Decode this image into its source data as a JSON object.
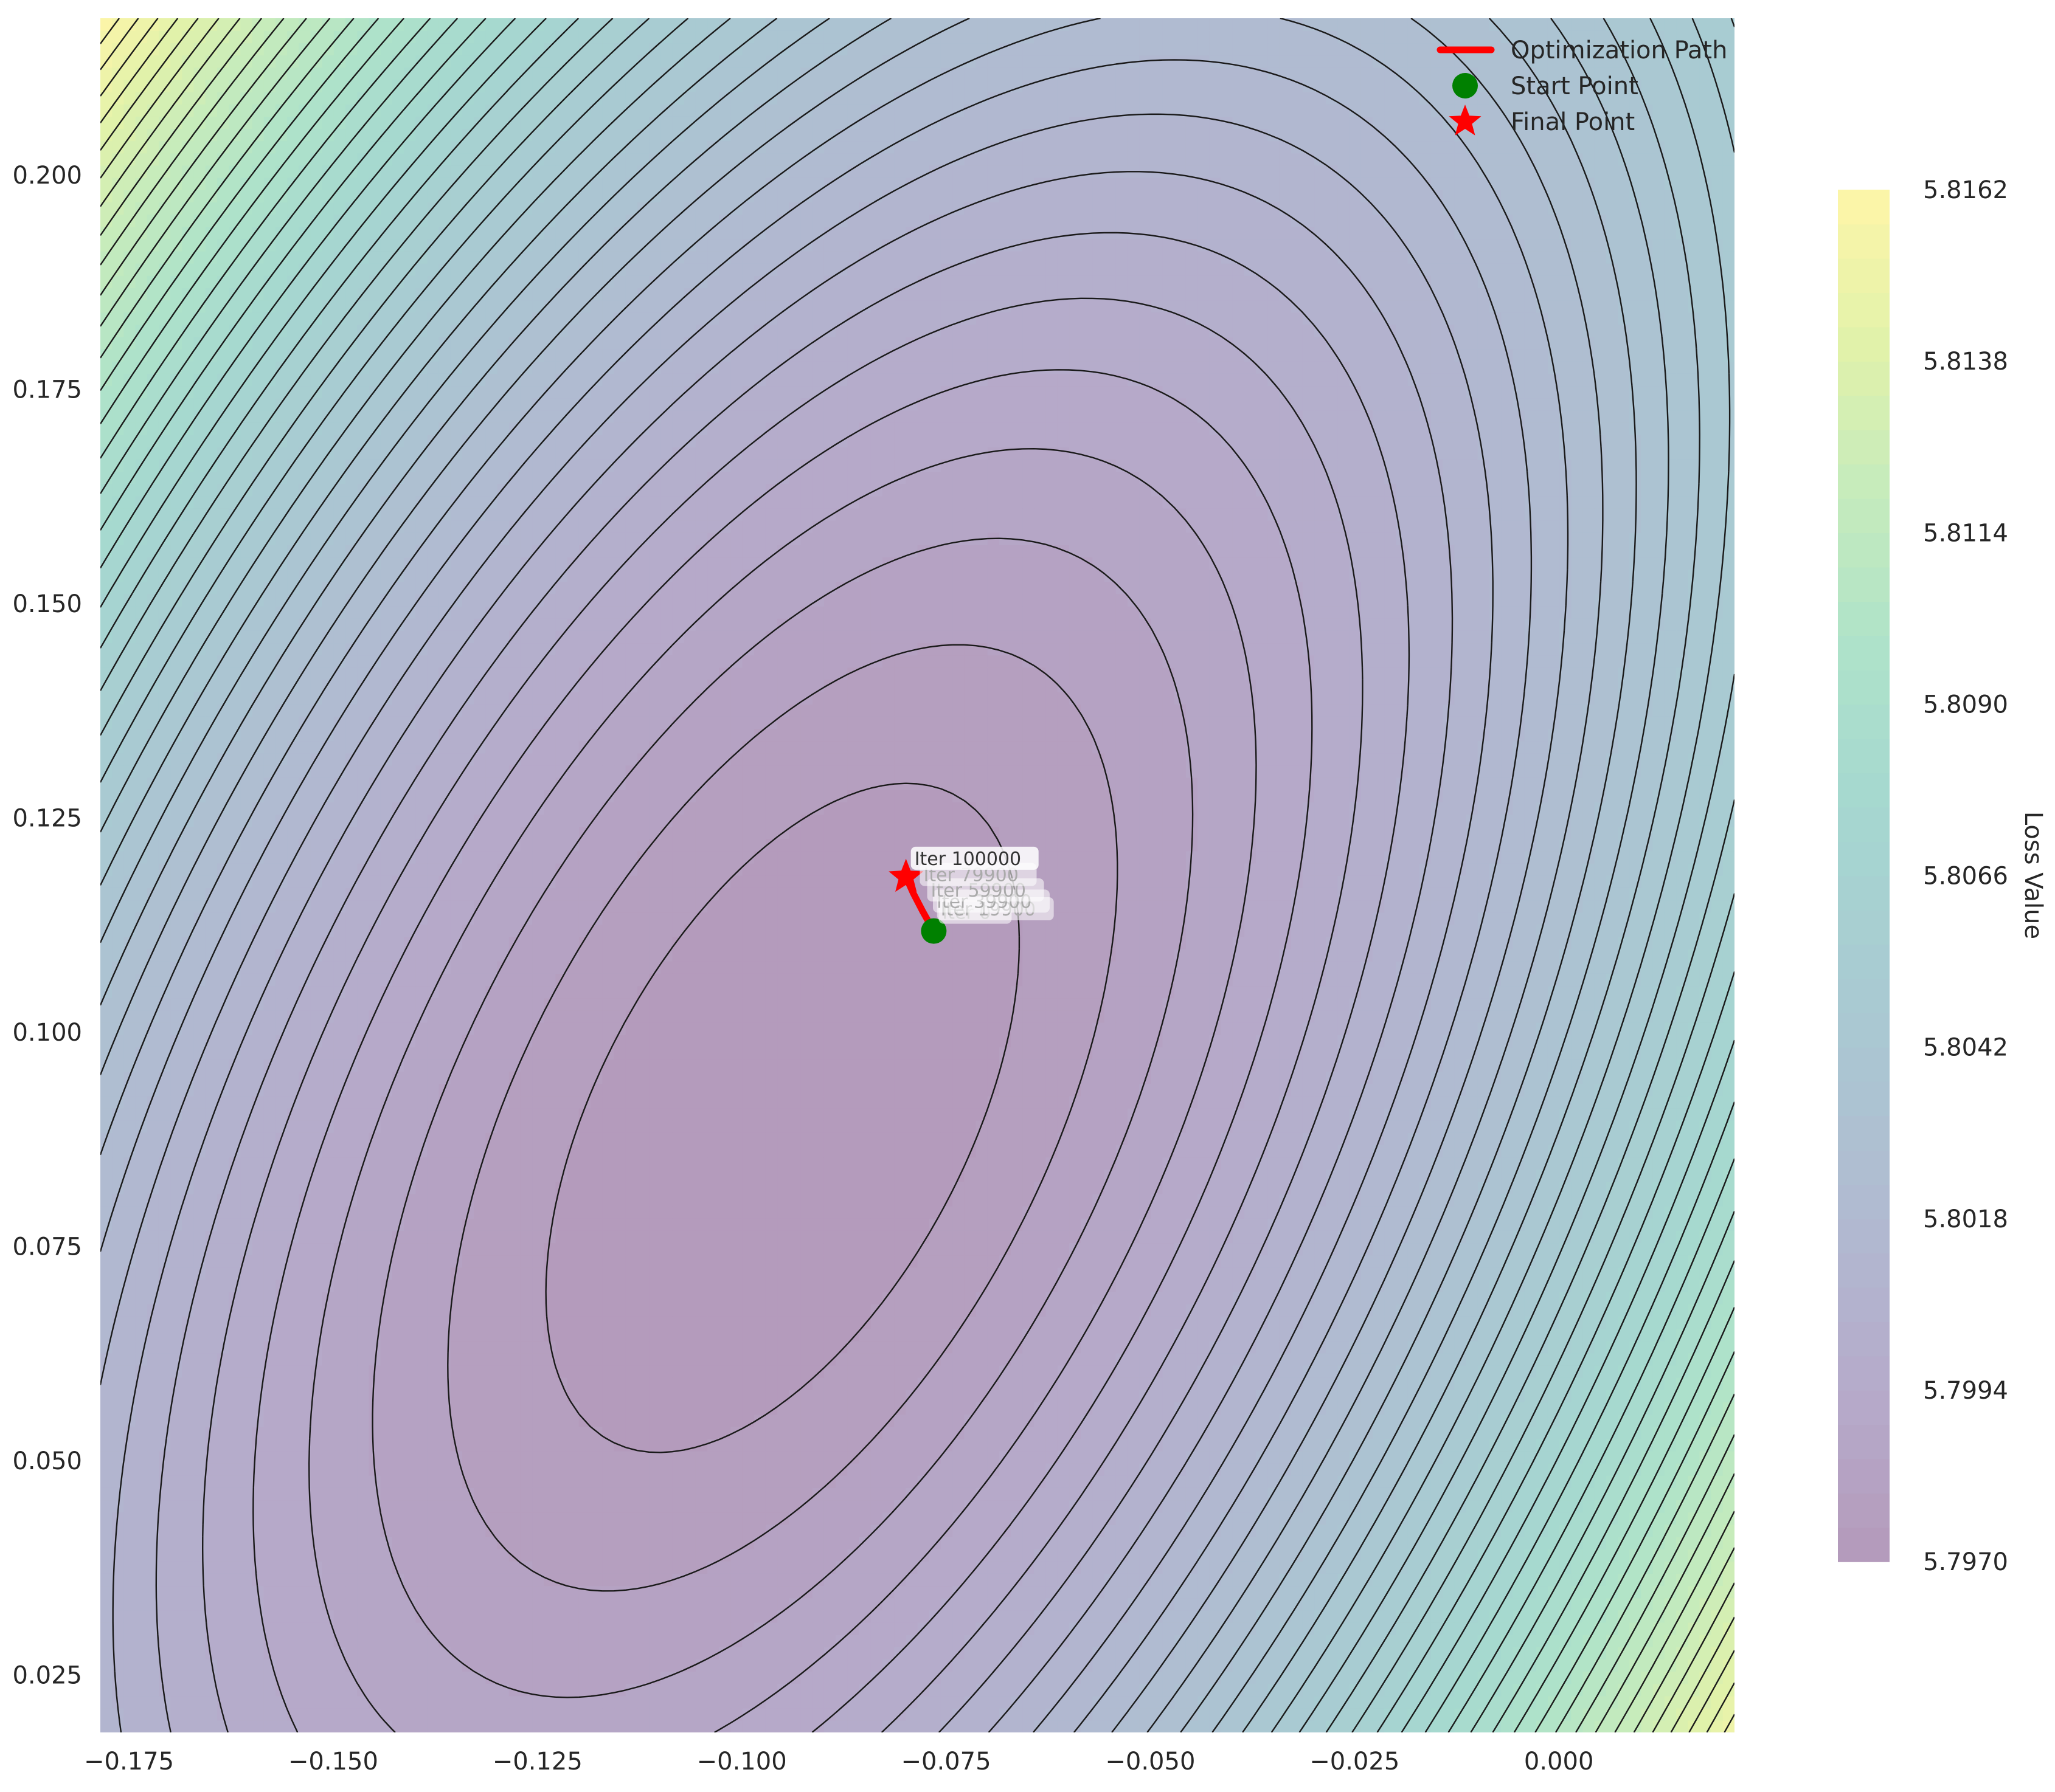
{
  "chart_data": {
    "type": "contour",
    "title": "",
    "xlabel": "",
    "ylabel": "",
    "xlim": [
      -0.1785,
      0.0215
    ],
    "ylim": [
      0.0183,
      0.2183
    ],
    "xticks": [
      -0.175,
      -0.15,
      -0.125,
      -0.1,
      -0.075,
      -0.05,
      -0.025,
      0.0
    ],
    "xtick_labels": [
      "−0.175",
      "−0.150",
      "−0.125",
      "−0.100",
      "−0.075",
      "−0.050",
      "−0.025",
      "0.000"
    ],
    "yticks": [
      0.025,
      0.05,
      0.075,
      0.1,
      0.125,
      0.15,
      0.175,
      0.2
    ],
    "ytick_labels": [
      "0.025",
      "0.050",
      "0.075",
      "0.100",
      "0.125",
      "0.150",
      "0.175",
      "0.200"
    ],
    "grid": false,
    "surface": {
      "minimum": [
        -0.095,
        0.09
      ],
      "min_value": 5.797,
      "max_value": 5.8162,
      "colormap": "viridis",
      "alpha": 0.4
    },
    "colorbar": {
      "label": "Loss Value",
      "range": [
        5.797,
        5.8162
      ],
      "ticks": [
        5.797,
        5.7994,
        5.8018,
        5.8042,
        5.8066,
        5.809,
        5.8114,
        5.8138,
        5.8162
      ],
      "tick_labels": [
        "5.7970",
        "5.7994",
        "5.8018",
        "5.8042",
        "5.8066",
        "5.8090",
        "5.8114",
        "5.8138",
        "5.8162"
      ]
    },
    "path": {
      "name": "Optimization Path",
      "color": "#ff0000",
      "x": [
        -0.0765,
        -0.0778,
        -0.079,
        -0.0799
      ],
      "y": [
        0.1118,
        0.114,
        0.1162,
        0.1181
      ]
    },
    "start_point": {
      "name": "Start Point",
      "x": -0.0765,
      "y": 0.1118,
      "color": "#008000"
    },
    "final_point": {
      "name": "Final Point",
      "x": -0.0799,
      "y": 0.1181,
      "color": "#ff0000"
    },
    "annotations": [
      {
        "text": "Iter 0",
        "x": -0.0765,
        "y": 0.1118
      },
      {
        "text": "Iter 19900",
        "x": -0.0767,
        "y": 0.1122
      },
      {
        "text": "Iter 39900",
        "x": -0.0772,
        "y": 0.1131
      },
      {
        "text": "Iter 59900",
        "x": -0.0779,
        "y": 0.1144
      },
      {
        "text": "Iter 79900",
        "x": -0.0788,
        "y": 0.1162
      },
      {
        "text": "Iter 100000",
        "x": -0.0799,
        "y": 0.1181
      }
    ],
    "legend": {
      "position": "top-right",
      "entries": [
        "Optimization Path",
        "Start Point",
        "Final Point"
      ]
    }
  }
}
